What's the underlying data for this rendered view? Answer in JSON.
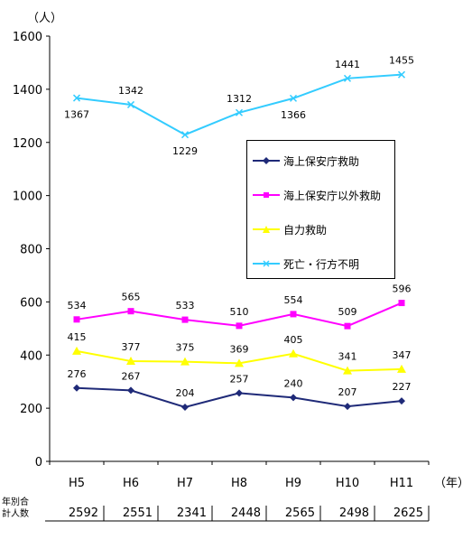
{
  "chart_data": {
    "type": "line",
    "ylabel": "（人）",
    "xunit": "（年）",
    "ylim": [
      0,
      1600
    ],
    "yticks": [
      "0",
      "200",
      "400",
      "600",
      "800",
      "1000",
      "1200",
      "1400",
      "1600"
    ],
    "categories": [
      "H5",
      "H6",
      "H7",
      "H8",
      "H9",
      "H10",
      "H11"
    ],
    "grid": false,
    "legend_position": "right",
    "series": [
      {
        "name": "海上保安庁救助",
        "values": [
          276,
          267,
          204,
          257,
          240,
          207,
          227
        ],
        "color": "#1f2a78",
        "marker": "diamond"
      },
      {
        "name": "海上保安庁以外救助",
        "values": [
          534,
          565,
          533,
          510,
          554,
          509,
          596
        ],
        "color": "#ff00ff",
        "marker": "square"
      },
      {
        "name": "自力救助",
        "values": [
          415,
          377,
          375,
          369,
          405,
          341,
          347
        ],
        "color": "#ffff00",
        "marker": "triangle"
      },
      {
        "name": "死亡・行方不明",
        "values": [
          1367,
          1342,
          1229,
          1312,
          1366,
          1441,
          1455
        ],
        "color": "#33ccff",
        "marker": "x"
      }
    ],
    "totals_label_line1": "年別合",
    "totals_label_line2": "計人数",
    "totals": [
      "2592",
      "2551",
      "2341",
      "2448",
      "2565",
      "2498",
      "2625"
    ]
  }
}
